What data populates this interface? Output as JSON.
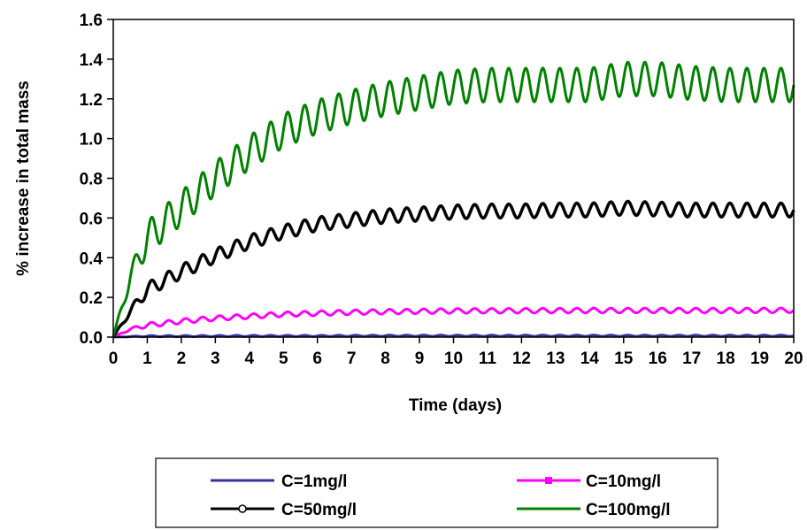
{
  "chart_data": {
    "type": "line",
    "xlabel": "Time (days)",
    "ylabel": "% increase in total mass",
    "xlim": [
      0,
      20
    ],
    "ylim": [
      0,
      1.6
    ],
    "x_ticks": [
      "0",
      "1",
      "2",
      "3",
      "4",
      "5",
      "6",
      "7",
      "8",
      "9",
      "10",
      "11",
      "12",
      "13",
      "14",
      "15",
      "16",
      "17",
      "18",
      "19",
      "20"
    ],
    "y_ticks": [
      "0.0",
      "0.2",
      "0.4",
      "0.6",
      "0.8",
      "1.0",
      "1.2",
      "1.4",
      "1.6"
    ],
    "grid": false,
    "legend_position": "bottom",
    "series": [
      {
        "name": "C=1mg/l",
        "color": "#333399",
        "marker": "dash",
        "x": [
          0,
          1,
          2,
          4,
          6,
          8,
          10,
          12,
          14,
          16,
          18,
          20
        ],
        "y": [
          0,
          0.005,
          0.005,
          0.006,
          0.006,
          0.007,
          0.007,
          0.007,
          0.007,
          0.007,
          0.007,
          0.007
        ],
        "oscillation_amplitude": 0.003
      },
      {
        "name": "C=10mg/l",
        "color": "#ff00ff",
        "marker": "square",
        "x": [
          0,
          0.5,
          1,
          2,
          3,
          4,
          5,
          6,
          7,
          8,
          9,
          10,
          12,
          14,
          16,
          18,
          20
        ],
        "y": [
          0,
          0.04,
          0.06,
          0.08,
          0.095,
          0.105,
          0.115,
          0.12,
          0.125,
          0.128,
          0.13,
          0.132,
          0.133,
          0.134,
          0.134,
          0.134,
          0.135
        ],
        "oscillation_amplitude": 0.012
      },
      {
        "name": "C=50mg/l",
        "color": "#000000",
        "marker": "circle-open",
        "x": [
          0,
          0.5,
          1,
          2,
          3,
          4,
          5,
          6,
          7,
          8,
          9,
          10,
          11,
          12,
          13,
          14,
          15,
          16,
          17,
          18,
          19,
          20
        ],
        "y": [
          0,
          0.13,
          0.24,
          0.33,
          0.41,
          0.48,
          0.53,
          0.57,
          0.59,
          0.61,
          0.62,
          0.63,
          0.635,
          0.635,
          0.64,
          0.64,
          0.65,
          0.645,
          0.64,
          0.64,
          0.64,
          0.64
        ],
        "oscillation_amplitude": 0.035
      },
      {
        "name": "C=100mg/l",
        "color": "#008000",
        "marker": "none",
        "x": [
          0,
          0.5,
          1,
          2,
          3,
          4,
          5,
          6,
          7,
          8,
          9,
          10,
          11,
          12,
          13,
          14,
          15,
          16,
          17,
          18,
          19,
          20
        ],
        "y": [
          0,
          0.3,
          0.5,
          0.65,
          0.8,
          0.93,
          1.04,
          1.11,
          1.16,
          1.2,
          1.23,
          1.26,
          1.27,
          1.27,
          1.27,
          1.27,
          1.3,
          1.3,
          1.28,
          1.27,
          1.27,
          1.27
        ],
        "oscillation_amplitude": 0.085
      }
    ]
  }
}
